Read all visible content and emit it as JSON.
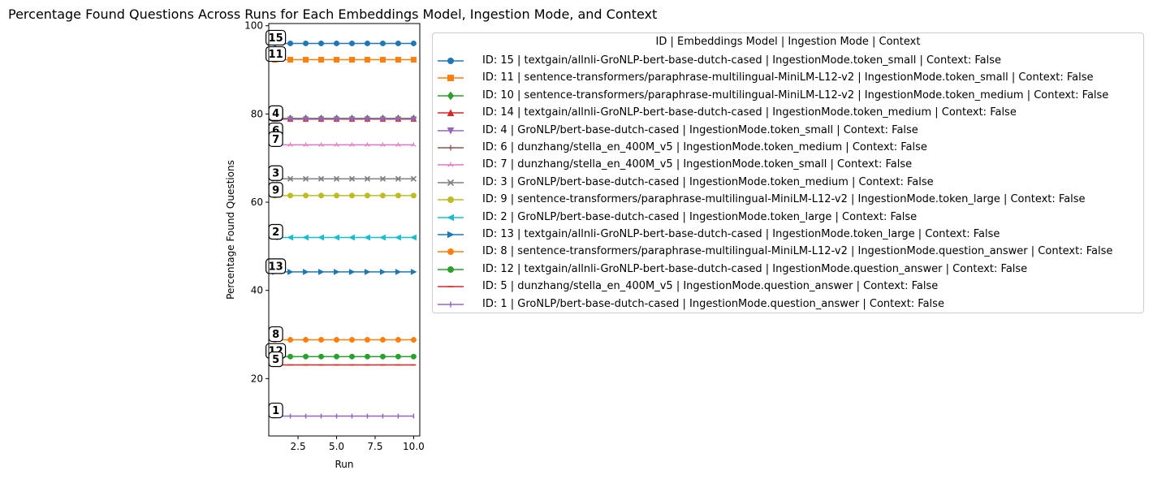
{
  "chart_data": {
    "type": "line",
    "title": "Percentage Found Questions Across Runs for Each Embeddings Model, Ingestion Mode, and Context",
    "xlabel": "Run",
    "ylabel": "Percentage Found Questions",
    "xlim": [
      0.6,
      10.4
    ],
    "ylim": [
      7,
      100.5
    ],
    "xticks": [
      2.5,
      5.0,
      7.5,
      10.0
    ],
    "xtick_labels": [
      "2.5",
      "5.0",
      "7.5",
      "10.0"
    ],
    "yticks": [
      20,
      40,
      60,
      80,
      100
    ],
    "ytick_labels": [
      "20",
      "40",
      "60",
      "80",
      "100"
    ],
    "grid": false,
    "legend_placement": "outside right",
    "legend_title": "ID | Embeddings Model | Ingestion Mode | Context",
    "x": [
      1,
      2,
      3,
      4,
      5,
      6,
      7,
      8,
      9,
      10
    ],
    "series": [
      {
        "id": "15",
        "name": "ID: 15 | textgain/allnli-GroNLP-bert-base-dutch-cased | IngestionMode.token_small | Context: False",
        "color": "#1f77b4",
        "marker": "circle",
        "values": [
          96,
          96,
          96,
          96,
          96,
          96,
          96,
          96,
          96,
          96
        ]
      },
      {
        "id": "11",
        "name": "ID: 11 | sentence-transformers/paraphrase-multilingual-MiniLM-L12-v2 | IngestionMode.token_small | Context: False",
        "color": "#ff7f0e",
        "marker": "square",
        "values": [
          92.3,
          92.3,
          92.3,
          92.3,
          92.3,
          92.3,
          92.3,
          92.3,
          92.3,
          92.3
        ]
      },
      {
        "id": "10",
        "name": "ID: 10 | sentence-transformers/paraphrase-multilingual-MiniLM-L12-v2 | IngestionMode.token_medium | Context: False",
        "color": "#2ca02c",
        "marker": "diamond",
        "values": [
          79,
          79,
          79,
          79,
          79,
          79,
          79,
          79,
          79,
          79
        ]
      },
      {
        "id": "14",
        "name": "ID: 14 | textgain/allnli-GroNLP-bert-base-dutch-cased | IngestionMode.token_medium | Context: False",
        "color": "#d62728",
        "marker": "triangle-up",
        "values": [
          78.9,
          78.9,
          78.9,
          78.9,
          78.9,
          78.9,
          78.9,
          78.9,
          78.9,
          78.9
        ]
      },
      {
        "id": "4",
        "name": "ID: 4 | GroNLP/bert-base-dutch-cased | IngestionMode.token_small | Context: False",
        "color": "#9467bd",
        "marker": "triangle-down",
        "values": [
          78.8,
          78.8,
          78.8,
          78.8,
          78.8,
          78.8,
          78.8,
          78.8,
          78.8,
          78.8
        ]
      },
      {
        "id": "6",
        "name": "ID: 6 | dunzhang/stella_en_400M_v5 | IngestionMode.token_medium | Context: False",
        "color": "#8c564b",
        "marker": "plus",
        "values": [
          75,
          null,
          null,
          null,
          null,
          null,
          null,
          null,
          null,
          null
        ]
      },
      {
        "id": "7",
        "name": "ID: 7 | dunzhang/stella_en_400M_v5 | IngestionMode.token_small | Context: False",
        "color": "#e377c2",
        "marker": "tri-up",
        "values": [
          73,
          73,
          73,
          73,
          73,
          73,
          73,
          73,
          73,
          73
        ]
      },
      {
        "id": "3",
        "name": "ID: 3 | GroNLP/bert-base-dutch-cased | IngestionMode.token_medium | Context: False",
        "color": "#7f7f7f",
        "marker": "x",
        "values": [
          65.3,
          65.3,
          65.3,
          65.3,
          65.3,
          65.3,
          65.3,
          65.3,
          65.3,
          65.3
        ]
      },
      {
        "id": "9",
        "name": "ID: 9 | sentence-transformers/paraphrase-multilingual-MiniLM-L12-v2 | IngestionMode.token_large | Context: False",
        "color": "#bcbd22",
        "marker": "circle",
        "values": [
          61.5,
          61.5,
          61.5,
          61.5,
          61.5,
          61.5,
          61.5,
          61.5,
          61.5,
          61.5
        ]
      },
      {
        "id": "2",
        "name": "ID: 2 | GroNLP/bert-base-dutch-cased | IngestionMode.token_large | Context: False",
        "color": "#17becf",
        "marker": "triangle-left",
        "values": [
          52,
          52,
          52,
          52,
          52,
          52,
          52,
          52,
          52,
          52
        ]
      },
      {
        "id": "13",
        "name": "ID: 13 | textgain/allnli-GroNLP-bert-base-dutch-cased | IngestionMode.token_large | Context: False",
        "color": "#1f77b4",
        "marker": "triangle-right",
        "values": [
          44.2,
          44.2,
          44.2,
          44.2,
          44.2,
          44.2,
          44.2,
          44.2,
          44.2,
          44.2
        ]
      },
      {
        "id": "8",
        "name": "ID: 8 | sentence-transformers/paraphrase-multilingual-MiniLM-L12-v2 | IngestionMode.question_answer | Context: False",
        "color": "#ff7f0e",
        "marker": "circle",
        "values": [
          28.8,
          28.8,
          28.8,
          28.8,
          28.8,
          28.8,
          28.8,
          28.8,
          28.8,
          28.8
        ]
      },
      {
        "id": "12",
        "name": "ID: 12 | textgain/allnli-GroNLP-bert-base-dutch-cased | IngestionMode.question_answer | Context: False",
        "color": "#2ca02c",
        "marker": "circle",
        "values": [
          25,
          25,
          25,
          25,
          25,
          25,
          25,
          25,
          25,
          25
        ]
      },
      {
        "id": "5",
        "name": "ID: 5 | dunzhang/stella_en_400M_v5 | IngestionMode.question_answer | Context: False",
        "color": "#d62728",
        "marker": "hline",
        "values": [
          23.1,
          23.1,
          23.1,
          23.1,
          23.1,
          23.1,
          23.1,
          23.1,
          23.1,
          23.1
        ]
      },
      {
        "id": "1",
        "name": "ID: 1 | GroNLP/bert-base-dutch-cased | IngestionMode.question_answer | Context: False",
        "color": "#9467bd",
        "marker": "vline",
        "values": [
          11.5,
          11.5,
          11.5,
          11.5,
          11.5,
          11.5,
          11.5,
          11.5,
          11.5,
          11.5
        ]
      }
    ],
    "annotations": [
      {
        "text": "15",
        "x": 1,
        "y": 96
      },
      {
        "text": "11",
        "x": 1,
        "y": 92.3
      },
      {
        "text": "4",
        "x": 1,
        "y": 78.8
      },
      {
        "text": "4",
        "x": 1,
        "y": 78.9
      },
      {
        "text": "6",
        "x": 1,
        "y": 75
      },
      {
        "text": "7",
        "x": 1,
        "y": 73
      },
      {
        "text": "3",
        "x": 1,
        "y": 65.3
      },
      {
        "text": "9",
        "x": 1,
        "y": 61.5
      },
      {
        "text": "2",
        "x": 1,
        "y": 52
      },
      {
        "text": "13",
        "x": 1,
        "y": 44.2
      },
      {
        "text": "8",
        "x": 1,
        "y": 28.8
      },
      {
        "text": "12",
        "x": 1,
        "y": 25
      },
      {
        "text": "5",
        "x": 1,
        "y": 23.1
      },
      {
        "text": "1",
        "x": 1,
        "y": 11.5
      }
    ]
  }
}
